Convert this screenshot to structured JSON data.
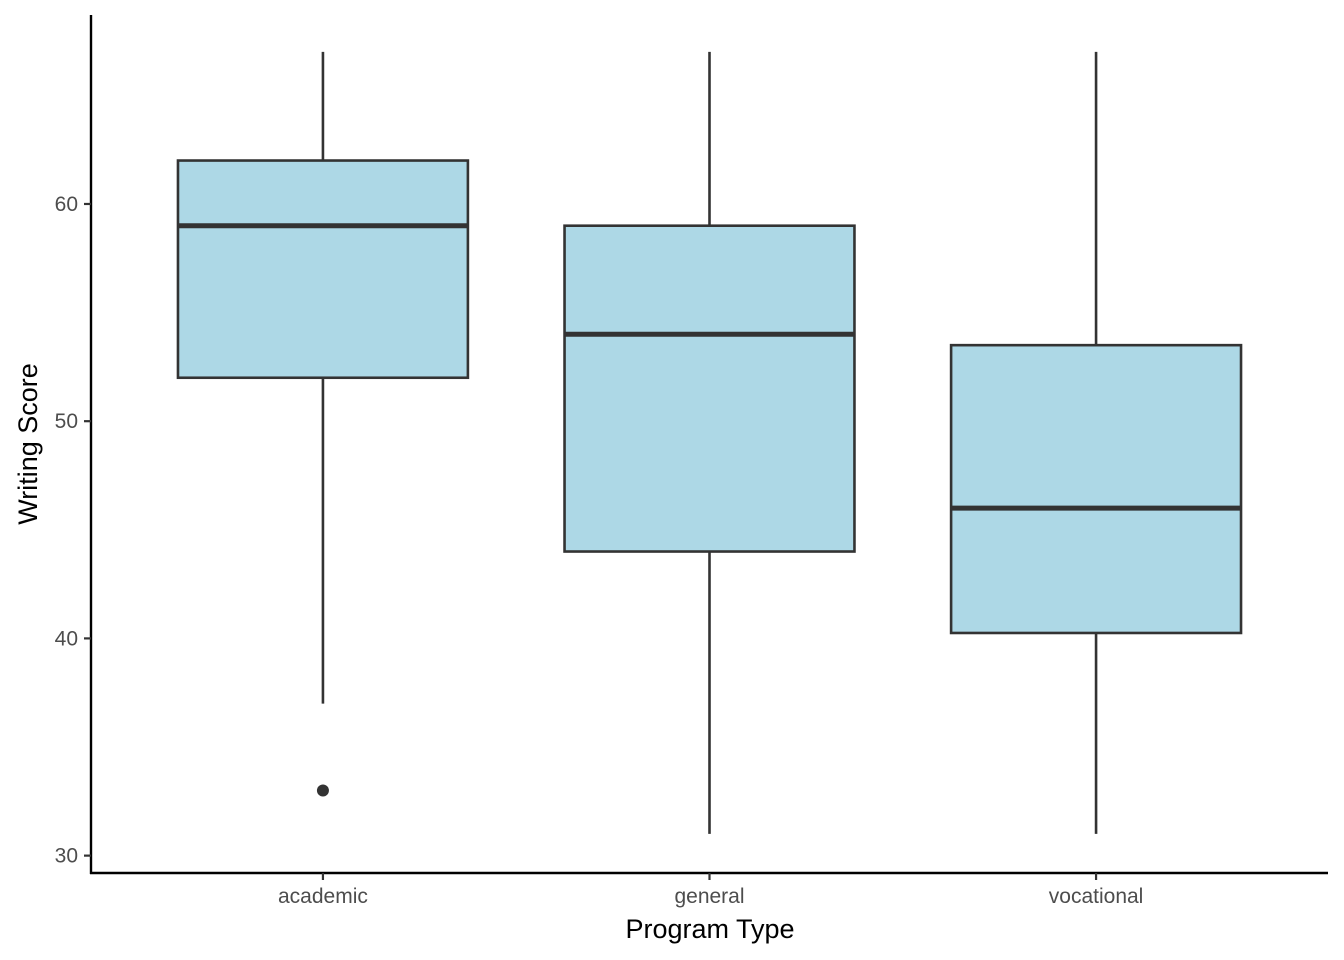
{
  "chart_data": {
    "type": "box",
    "xlabel": "Program Type",
    "ylabel": "Writing Score",
    "ylim": [
      29.2,
      68.7
    ],
    "yticks": [
      30,
      40,
      50,
      60
    ],
    "categories": [
      "academic",
      "general",
      "vocational"
    ],
    "boxes": [
      {
        "category": "academic",
        "whisker_low": 37,
        "q1": 52,
        "median": 59,
        "q3": 62,
        "whisker_high": 67,
        "outliers": [
          33
        ]
      },
      {
        "category": "general",
        "whisker_low": 31,
        "q1": 44,
        "median": 54,
        "q3": 59,
        "whisker_high": 67,
        "outliers": []
      },
      {
        "category": "vocational",
        "whisker_low": 31,
        "q1": 40.25,
        "median": 46,
        "q3": 53.5,
        "whisker_high": 67,
        "outliers": []
      }
    ],
    "grid": false,
    "legend": "none",
    "colors": {
      "box_fill": "#ADD8E6",
      "box_stroke": "#333333",
      "axis": "#000000"
    }
  }
}
